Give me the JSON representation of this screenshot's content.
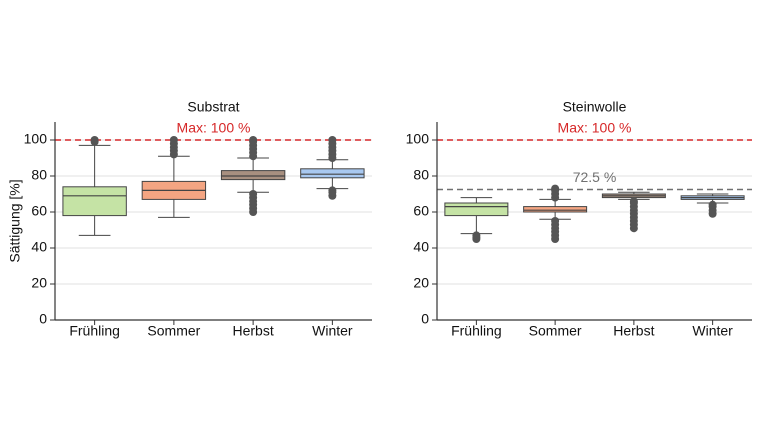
{
  "chart_data": [
    {
      "type": "box",
      "title": "Substrat",
      "ylabel": "Sättigung [%]",
      "categories": [
        "Frühling",
        "Sommer",
        "Herbst",
        "Winter"
      ],
      "colors": [
        "#c5e3a5",
        "#f4a582",
        "#a89080",
        "#a8c8f0"
      ],
      "boxes": [
        {
          "whislo": 47,
          "q1": 58,
          "med": 69,
          "q3": 74,
          "whishi": 97,
          "fliers": [
            99,
            100
          ]
        },
        {
          "whislo": 57,
          "q1": 67,
          "med": 72,
          "q3": 77,
          "whishi": 91,
          "fliers": [
            92,
            94,
            96,
            98,
            100
          ]
        },
        {
          "whislo": 71,
          "q1": 78,
          "med": 80,
          "q3": 83,
          "whishi": 90,
          "fliers": [
            60,
            62,
            64,
            66,
            68,
            70,
            91,
            93,
            95,
            97,
            99,
            100
          ]
        },
        {
          "whislo": 73,
          "q1": 79,
          "med": 81,
          "q3": 84,
          "whishi": 89,
          "fliers": [
            69,
            71,
            72,
            90,
            92,
            94,
            96,
            98,
            100
          ]
        }
      ],
      "ylim": [
        0,
        110
      ],
      "yticks": [
        0,
        20,
        40,
        60,
        80,
        100
      ],
      "grid": true,
      "reference_lines": [
        {
          "value": 100,
          "label": "Max: 100 %",
          "color": "#d62728"
        }
      ]
    },
    {
      "type": "box",
      "title": "Steinwolle",
      "categories": [
        "Frühling",
        "Sommer",
        "Herbst",
        "Winter"
      ],
      "colors": [
        "#c5e3a5",
        "#f4a582",
        "#a89080",
        "#a8c8f0"
      ],
      "boxes": [
        {
          "whislo": 48,
          "q1": 58,
          "med": 63,
          "q3": 65,
          "whishi": 68,
          "fliers": [
            45,
            46,
            47
          ]
        },
        {
          "whislo": 56,
          "q1": 60,
          "med": 61,
          "q3": 63,
          "whishi": 67,
          "fliers": [
            45,
            47,
            49,
            51,
            53,
            55,
            68,
            70,
            72,
            73
          ]
        },
        {
          "whislo": 67,
          "q1": 68,
          "med": 69,
          "q3": 70,
          "whishi": 71,
          "fliers": [
            51,
            53,
            55,
            57,
            59,
            61,
            63,
            65,
            66
          ]
        },
        {
          "whislo": 65,
          "q1": 67,
          "med": 68,
          "q3": 69,
          "whishi": 70,
          "fliers": [
            59,
            61,
            63,
            64
          ]
        }
      ],
      "ylim": [
        0,
        110
      ],
      "yticks": [
        0,
        20,
        40,
        60,
        80,
        100
      ],
      "grid": true,
      "reference_lines": [
        {
          "value": 100,
          "label": "Max: 100 %",
          "color": "#d62728"
        },
        {
          "value": 72.5,
          "label": "72.5 %",
          "color": "#707070"
        }
      ]
    }
  ]
}
